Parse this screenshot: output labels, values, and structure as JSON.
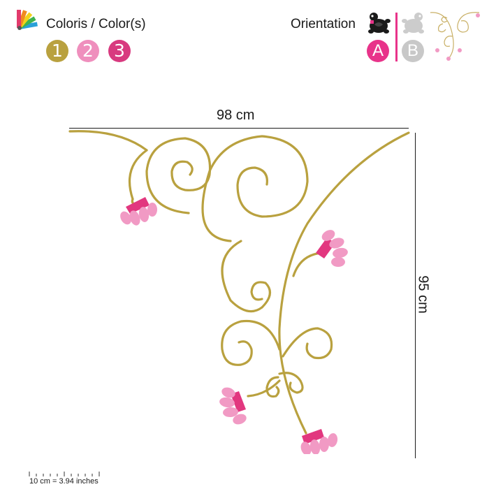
{
  "colors_section": {
    "title": "Coloris / Color(s)",
    "options": [
      {
        "label": "1",
        "color": "#b9a13f"
      },
      {
        "label": "2",
        "color": "#ef8fbd"
      },
      {
        "label": "3",
        "color": "#d83a7f"
      }
    ]
  },
  "orientation_section": {
    "title": "Orientation",
    "options": [
      {
        "label": "A",
        "color": "#e8338a",
        "selected": true
      },
      {
        "label": "B",
        "color": "#c8c8c8",
        "selected": false
      }
    ],
    "divider_color": "#e8338a"
  },
  "dimensions": {
    "width_label": "98 cm",
    "height_label": "95 cm"
  },
  "scale": {
    "label": "10 cm = 3.94 inches"
  },
  "design_colors": {
    "stroke": "#b9a13f",
    "flower_light": "#f19ac4",
    "flower_dark": "#e2377f"
  }
}
